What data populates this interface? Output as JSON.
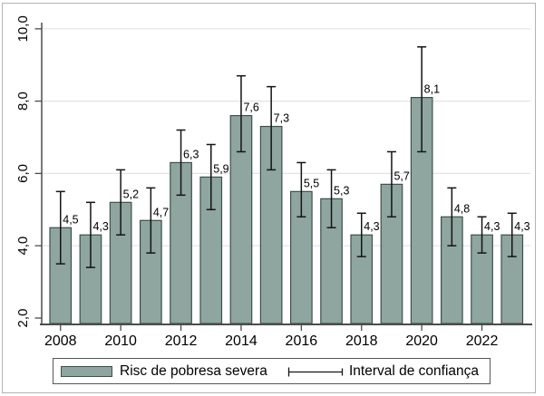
{
  "figure": {
    "legend": {
      "series_label": "Risc de pobresa severa",
      "ci_label": "Interval de confiança"
    }
  },
  "chart_data": {
    "type": "bar",
    "title": "",
    "xlabel": "",
    "ylabel": "",
    "categories": [
      2008,
      2009,
      2010,
      2011,
      2012,
      2013,
      2014,
      2015,
      2016,
      2017,
      2018,
      2019,
      2020,
      2021,
      2022,
      2023
    ],
    "series": [
      {
        "name": "Risc de pobresa severa",
        "values": [
          4.5,
          4.3,
          5.2,
          4.7,
          6.3,
          5.9,
          7.6,
          7.3,
          5.5,
          5.3,
          4.3,
          5.7,
          8.1,
          4.8,
          4.3,
          4.3
        ]
      }
    ],
    "bar_labels": [
      "4,5",
      "4,3",
      "5,2",
      "4,7",
      "6,3",
      "5,9",
      "7,6",
      "7,3",
      "5,5",
      "5,3",
      "4,3",
      "5,7",
      "8,1",
      "4,8",
      "4,3",
      "4,3"
    ],
    "confidence_intervals": {
      "name": "Interval de confiança",
      "low": [
        3.5,
        3.4,
        4.3,
        3.8,
        5.4,
        5.0,
        6.6,
        6.1,
        4.8,
        4.5,
        3.7,
        4.8,
        6.6,
        4.0,
        3.8,
        3.7
      ],
      "high": [
        5.5,
        5.2,
        6.1,
        5.6,
        7.2,
        6.8,
        8.7,
        8.4,
        6.3,
        6.1,
        4.9,
        6.6,
        9.5,
        5.6,
        4.8,
        4.9
      ]
    },
    "x_tick_labels": [
      "2008",
      "2010",
      "2012",
      "2014",
      "2016",
      "2018",
      "2020",
      "2022"
    ],
    "y_tick_labels": [
      "2,0",
      "4,0",
      "6,0",
      "8,0",
      "10,0"
    ],
    "y_tick_values": [
      2,
      4,
      6,
      8,
      10
    ],
    "grid_values": [
      4,
      6,
      8,
      10
    ],
    "ylim": [
      2,
      10
    ],
    "grid": true,
    "legend_position": "bottom",
    "colors": {
      "bar_fill": "#8ea69f",
      "bar_stroke": "#3f4f4c",
      "error": "#141414",
      "grid": "#e3e3e3",
      "axis": "#4c4c4c",
      "text": "#000000",
      "frame": "#b3b3b3",
      "legend_border": "#565656",
      "background": "#ffffff"
    }
  }
}
